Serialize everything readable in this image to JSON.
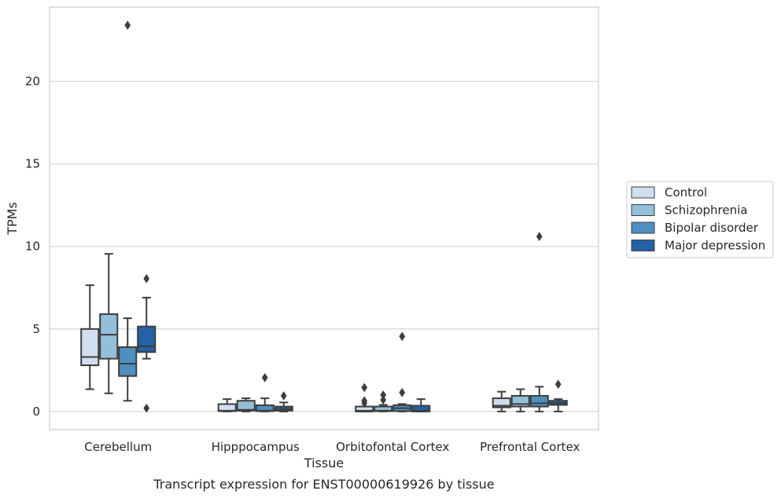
{
  "chart_data": {
    "type": "box",
    "caption": "Transcript expression for ENST00000619926 by tissue",
    "xlabel": "Tissue",
    "ylabel": "TPMs",
    "ylim": [
      -1.1,
      24.5
    ],
    "yticks": [
      0,
      5,
      10,
      15,
      20
    ],
    "grid": "horizontal",
    "legend_position": "right",
    "colors": {
      "Control": "#cfdff0",
      "Schizophrenia": "#94bfd9",
      "Bipolar disorder": "#4f8fc0",
      "Major depression": "#2462a5",
      "edge": "#3d3d3d",
      "grid": "#d6d6d6",
      "frame": "#cccccc"
    },
    "categories": [
      "Cerebellum",
      "Hipppocampus",
      "Orbitofontal Cortex",
      "Prefrontal Cortex"
    ],
    "series": [
      {
        "name": "Control",
        "boxes": [
          {
            "whislo": 1.35,
            "q1": 2.8,
            "med": 3.3,
            "q3": 5.0,
            "whishi": 7.65,
            "fliers": []
          },
          {
            "whislo": 0.0,
            "q1": 0.02,
            "med": 0.05,
            "q3": 0.45,
            "whishi": 0.75,
            "fliers": []
          },
          {
            "whislo": 0.0,
            "q1": 0.0,
            "med": 0.05,
            "q3": 0.3,
            "whishi": 0.3,
            "fliers": [
              1.45,
              0.65,
              0.5
            ]
          },
          {
            "whislo": 0.0,
            "q1": 0.25,
            "med": 0.35,
            "q3": 0.8,
            "whishi": 1.2,
            "fliers": []
          }
        ]
      },
      {
        "name": "Schizophrenia",
        "boxes": [
          {
            "whislo": 1.1,
            "q1": 3.2,
            "med": 4.65,
            "q3": 5.9,
            "whishi": 9.55,
            "fliers": []
          },
          {
            "whislo": 0.0,
            "q1": 0.05,
            "med": 0.1,
            "q3": 0.65,
            "whishi": 0.8,
            "fliers": []
          },
          {
            "whislo": 0.0,
            "q1": 0.02,
            "med": 0.05,
            "q3": 0.3,
            "whishi": 0.4,
            "fliers": [
              1.0,
              0.7
            ]
          },
          {
            "whislo": 0.0,
            "q1": 0.3,
            "med": 0.45,
            "q3": 0.95,
            "whishi": 1.35,
            "fliers": []
          }
        ]
      },
      {
        "name": "Bipolar disorder",
        "boxes": [
          {
            "whislo": 0.65,
            "q1": 2.15,
            "med": 2.9,
            "q3": 3.9,
            "whishi": 5.65,
            "fliers": [
              23.4
            ]
          },
          {
            "whislo": 0.0,
            "q1": 0.02,
            "med": 0.05,
            "q3": 0.38,
            "whishi": 0.8,
            "fliers": [
              2.05
            ]
          },
          {
            "whislo": 0.0,
            "q1": 0.02,
            "med": 0.2,
            "q3": 0.38,
            "whishi": 0.45,
            "fliers": [
              4.55,
              1.15
            ]
          },
          {
            "whislo": 0.0,
            "q1": 0.3,
            "med": 0.5,
            "q3": 0.95,
            "whishi": 1.5,
            "fliers": [
              10.6
            ]
          }
        ]
      },
      {
        "name": "Major depression",
        "boxes": [
          {
            "whislo": 3.2,
            "q1": 3.6,
            "med": 3.95,
            "q3": 5.15,
            "whishi": 6.9,
            "fliers": [
              8.05,
              0.2
            ]
          },
          {
            "whislo": 0.0,
            "q1": 0.05,
            "med": 0.15,
            "q3": 0.3,
            "whishi": 0.55,
            "fliers": [
              0.95
            ]
          },
          {
            "whislo": 0.0,
            "q1": 0.0,
            "med": 0.05,
            "q3": 0.35,
            "whishi": 0.75,
            "fliers": []
          },
          {
            "whislo": 0.0,
            "q1": 0.4,
            "med": 0.5,
            "q3": 0.65,
            "whishi": 0.75,
            "fliers": [
              1.65
            ]
          }
        ]
      }
    ]
  }
}
